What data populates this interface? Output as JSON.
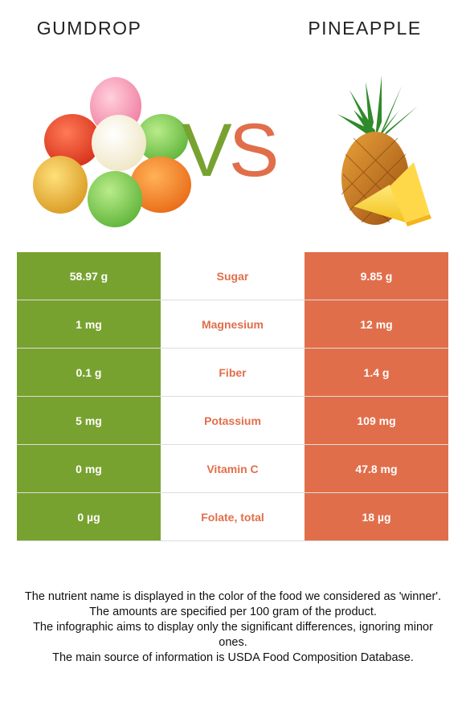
{
  "titles": {
    "left": "GUMDROP",
    "right": "PINEAPPLE"
  },
  "vs": {
    "v": "V",
    "s": "S"
  },
  "colors": {
    "left": "#78a22f",
    "right": "#e16e4a"
  },
  "rows": [
    {
      "left": "58.97 g",
      "nutrient": "Sugar",
      "right": "9.85 g",
      "winner": "right"
    },
    {
      "left": "1 mg",
      "nutrient": "Magnesium",
      "right": "12 mg",
      "winner": "right"
    },
    {
      "left": "0.1 g",
      "nutrient": "Fiber",
      "right": "1.4 g",
      "winner": "right"
    },
    {
      "left": "5 mg",
      "nutrient": "Potassium",
      "right": "109 mg",
      "winner": "right"
    },
    {
      "left": "0 mg",
      "nutrient": "Vitamin C",
      "right": "47.8 mg",
      "winner": "right"
    },
    {
      "left": "0 µg",
      "nutrient": "Folate, total",
      "right": "18 µg",
      "winner": "right"
    }
  ],
  "footnote": [
    "The nutrient name is displayed in the color of the food we considered as 'winner'.",
    "The amounts are specified per 100 gram of the product.",
    "The infographic aims to display only the significant differences, ignoring minor ones.",
    "The main source of information is USDA Food Composition Database."
  ]
}
